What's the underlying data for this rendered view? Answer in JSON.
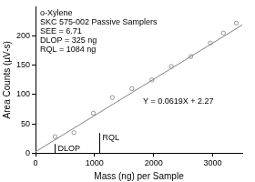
{
  "chart_data": {
    "type": "scatter",
    "xlabel": "Mass (ng) per Sample",
    "ylabel": "Area Counts (µV-s)",
    "annotations": [
      "o-Xylene",
      "SKC 575-002 Passive Samplers",
      "SEE = 6.71",
      "DLOP = 325 ng",
      "RQL = 1084 ng"
    ],
    "equation": "Y = 0.0619X + 2.27",
    "markers": [
      {
        "label": "DLOP",
        "x": 325
      },
      {
        "label": "RQL",
        "x": 1084
      }
    ],
    "xlim": [
      0,
      3500
    ],
    "xticks": [
      0,
      1000,
      2000,
      3000
    ],
    "ylim": [
      0,
      250
    ],
    "yticks": [
      0,
      50,
      100,
      150,
      200
    ],
    "grid": false,
    "series": [
      {
        "type": "scatter",
        "marker": "circle",
        "color": "#808080",
        "x": [
          330,
          650,
          980,
          1300,
          1630,
          1970,
          2300,
          2630,
          2960,
          3180,
          3400
        ],
        "values": [
          28,
          35,
          68,
          95,
          110,
          125,
          148,
          165,
          188,
          205,
          222
        ]
      },
      {
        "type": "line",
        "line_style": "solid",
        "color": "#808080",
        "x": [
          0,
          3500
        ],
        "values": [
          2.27,
          218.92
        ]
      }
    ]
  }
}
